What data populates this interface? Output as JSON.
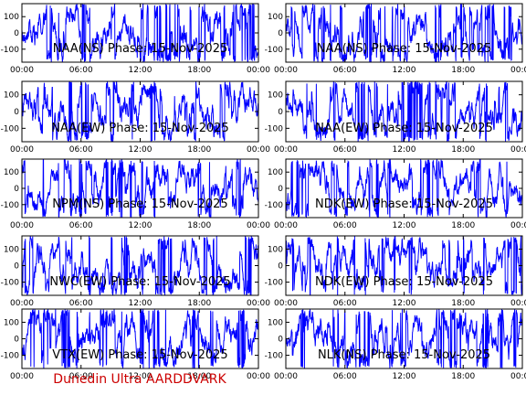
{
  "footer": {
    "text": "Dunedin Ultra AARDDVARK",
    "color": "#cc0000"
  },
  "trace_color": "#0000ff",
  "chart_data": [
    {
      "type": "line",
      "title": "NAA(NS) Phase: 15-Nov-2025",
      "x_ticks": [
        "00:00",
        "06:00",
        "12:00",
        "18:00",
        "00:00"
      ],
      "y_ticks": [
        "100",
        "0",
        "-100"
      ],
      "ylim": [
        -180,
        180
      ]
    },
    {
      "type": "line",
      "title": "NAA(NS) Phase: 15-Nov-2025",
      "x_ticks": [
        "00:00",
        "06:00",
        "12:00",
        "18:00",
        "00:00"
      ],
      "y_ticks": [
        "100",
        "0",
        "-100"
      ],
      "ylim": [
        -180,
        180
      ]
    },
    {
      "type": "line",
      "title": "NAA(EW) Phase: 15-Nov-2025",
      "x_ticks": [
        "00:00",
        "06:00",
        "12:00",
        "18:00",
        "00:00"
      ],
      "y_ticks": [
        "100",
        "0",
        "-100"
      ],
      "ylim": [
        -180,
        180
      ]
    },
    {
      "type": "line",
      "title": "NAA(EW) Phase: 15-Nov-2025",
      "x_ticks": [
        "00:00",
        "06:00",
        "12:00",
        "18:00",
        "00:00"
      ],
      "y_ticks": [
        "100",
        "0",
        "-100"
      ],
      "ylim": [
        -180,
        180
      ]
    },
    {
      "type": "line",
      "title": "NPM(NS) Phase: 15-Nov-2025",
      "x_ticks": [
        "00:00",
        "06:00",
        "12:00",
        "18:00",
        "00:00"
      ],
      "y_ticks": [
        "100",
        "0",
        "-100"
      ],
      "ylim": [
        -180,
        180
      ]
    },
    {
      "type": "line",
      "title": "NDK(EW) Phase: 15-Nov-2025",
      "x_ticks": [
        "00:00",
        "06:00",
        "12:00",
        "18:00",
        "00:00"
      ],
      "y_ticks": [
        "100",
        "0",
        "-100"
      ],
      "ylim": [
        -180,
        180
      ]
    },
    {
      "type": "line",
      "title": "NWC(EW) Phase: 15-Nov-2025",
      "x_ticks": [
        "00:00",
        "06:00",
        "12:00",
        "18:00",
        "00:00"
      ],
      "y_ticks": [
        "100",
        "0",
        "-100"
      ],
      "ylim": [
        -180,
        180
      ]
    },
    {
      "type": "line",
      "title": "NDK(EW) Phase: 15-Nov-2025",
      "x_ticks": [
        "00:00",
        "06:00",
        "12:00",
        "18:00",
        "00:00"
      ],
      "y_ticks": [
        "100",
        "0",
        "-100"
      ],
      "ylim": [
        -180,
        180
      ]
    },
    {
      "type": "line",
      "title": "VTX(EW) Phase: 15-Nov-2025",
      "x_ticks": [
        "00:00",
        "06:00",
        "12:00",
        "18:00",
        "00:00"
      ],
      "y_ticks": [
        "100",
        "0",
        "-100"
      ],
      "ylim": [
        -180,
        180
      ]
    },
    {
      "type": "line",
      "title": "NLK(NS) Phase: 15-Nov-2025",
      "x_ticks": [
        "00:00",
        "06:00",
        "12:00",
        "18:00",
        "00:00"
      ],
      "y_ticks": [
        "100",
        "0",
        "-100"
      ],
      "ylim": [
        -180,
        180
      ]
    }
  ]
}
